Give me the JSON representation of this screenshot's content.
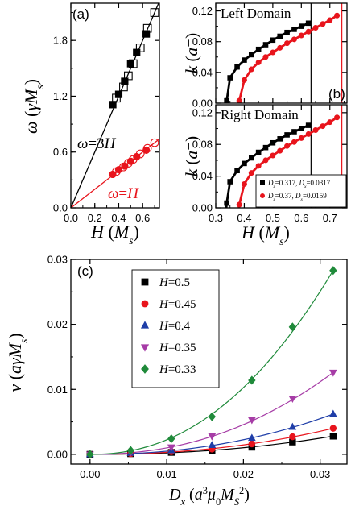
{
  "chart_data": [
    {
      "id": "a",
      "type": "scatter",
      "panel_label": "(a)",
      "xlabel": "H (M_s)",
      "ylabel": "ω (γM_s)",
      "xlim": [
        0,
        0.74
      ],
      "ylim": [
        0,
        2.2
      ],
      "xticks": [
        "0.0",
        "0.2",
        "0.4",
        "0.6"
      ],
      "yticks": [
        "0.0",
        "0.6",
        "1.2",
        "1.8"
      ],
      "annotations": [
        {
          "text": "ω=3H",
          "color": "#000000"
        },
        {
          "text": "ω=H",
          "color": "#e8141c"
        }
      ],
      "series": [
        {
          "name": "",
          "color": "#000000",
          "marker": "filled-square",
          "x": [
            0.35,
            0.4,
            0.45,
            0.5,
            0.55,
            0.63
          ],
          "y": [
            1.11,
            1.22,
            1.36,
            1.55,
            1.67,
            1.87
          ]
        },
        {
          "name": "",
          "color": "#000000",
          "marker": "open-square",
          "x": [
            0.38,
            0.44,
            0.48,
            0.52,
            0.58,
            0.64,
            0.7
          ],
          "y": [
            1.18,
            1.3,
            1.42,
            1.55,
            1.72,
            1.93,
            2.1
          ]
        },
        {
          "name": "",
          "color": "#e8141c",
          "marker": "filled-circle",
          "x": [
            0.35,
            0.4,
            0.45,
            0.5,
            0.55,
            0.63
          ],
          "y": [
            0.36,
            0.41,
            0.45,
            0.5,
            0.55,
            0.62
          ]
        },
        {
          "name": "",
          "color": "#e8141c",
          "marker": "open-circle",
          "x": [
            0.38,
            0.44,
            0.48,
            0.52,
            0.58,
            0.64,
            0.7
          ],
          "y": [
            0.39,
            0.44,
            0.48,
            0.52,
            0.58,
            0.64,
            0.7
          ]
        }
      ],
      "lines": [
        {
          "color": "#000000",
          "x": [
            0,
            0.74
          ],
          "y": [
            0,
            2.22
          ]
        },
        {
          "color": "#e8141c",
          "x": [
            0,
            0.74
          ],
          "y": [
            0,
            0.74
          ]
        }
      ]
    },
    {
      "id": "b-top",
      "type": "line",
      "panel_label": "(b)",
      "title": "Left Domain",
      "ylabel": "k (a⁻¹)",
      "xlim": [
        0.3,
        0.76
      ],
      "ylim": [
        0,
        0.13
      ],
      "yticks": [
        "0.00",
        "0.04",
        "0.08",
        "0.12"
      ],
      "vlines": [
        {
          "x": 0.634,
          "color": "#000000"
        },
        {
          "x": 0.742,
          "color": "#e8141c"
        }
      ],
      "series": [
        {
          "name": "",
          "color": "#000000",
          "x": [
            0.3385,
            0.35,
            0.375,
            0.4,
            0.425,
            0.45,
            0.475,
            0.5,
            0.525,
            0.55,
            0.575,
            0.6,
            0.625
          ],
          "y": [
            0.003,
            0.033,
            0.047,
            0.056,
            0.063,
            0.07,
            0.076,
            0.082,
            0.087,
            0.092,
            0.096,
            0.1,
            0.104
          ]
        },
        {
          "name": "",
          "color": "#e8141c",
          "x": [
            0.3825,
            0.4,
            0.425,
            0.45,
            0.475,
            0.5,
            0.525,
            0.55,
            0.575,
            0.6,
            0.625,
            0.65,
            0.675,
            0.7,
            0.725
          ],
          "y": [
            0.003,
            0.03,
            0.044,
            0.053,
            0.06,
            0.066,
            0.072,
            0.078,
            0.083,
            0.088,
            0.093,
            0.098,
            0.103,
            0.108,
            0.114
          ]
        }
      ]
    },
    {
      "id": "b-bottom",
      "type": "line",
      "title": "Right Domain",
      "xlabel": "H (M_s)",
      "ylabel": "k (a⁻¹)",
      "xlim": [
        0.3,
        0.76
      ],
      "ylim": [
        0,
        0.13
      ],
      "xticks": [
        "0.3",
        "0.4",
        "0.5",
        "0.6",
        "0.7"
      ],
      "yticks": [
        "0.00",
        "0.04",
        "0.08",
        "0.12"
      ],
      "vlines": [
        {
          "x": 0.634,
          "color": "#000000"
        },
        {
          "x": 0.742,
          "color": "#e8141c"
        }
      ],
      "legend": {
        "position": "bottom-right",
        "entries": [
          {
            "prefix": "D",
            "sub1": "z",
            "mid": "=0.317, D",
            "sub2": "x",
            "suffix": "=0.0317",
            "color": "#000000",
            "marker": "square"
          },
          {
            "prefix": "D",
            "sub1": "z",
            "mid": "=0.37, D",
            "sub2": "x",
            "suffix": "=0.0159",
            "color": "#e8141c",
            "marker": "circle"
          }
        ]
      },
      "series": [
        {
          "name": "D_z=0.317, D_x=0.0317",
          "color": "#000000",
          "x": [
            0.3385,
            0.35,
            0.375,
            0.4,
            0.425,
            0.45,
            0.475,
            0.5,
            0.525,
            0.55,
            0.575,
            0.6,
            0.625
          ],
          "y": [
            0.006,
            0.033,
            0.047,
            0.056,
            0.063,
            0.07,
            0.076,
            0.082,
            0.087,
            0.092,
            0.096,
            0.1,
            0.104
          ]
        },
        {
          "name": "D_z=0.37, D_x=0.0159",
          "color": "#e8141c",
          "x": [
            0.3825,
            0.4,
            0.425,
            0.45,
            0.475,
            0.5,
            0.525,
            0.55,
            0.575,
            0.6,
            0.625,
            0.65,
            0.675,
            0.7,
            0.725
          ],
          "y": [
            0.004,
            0.03,
            0.044,
            0.053,
            0.06,
            0.066,
            0.072,
            0.078,
            0.083,
            0.088,
            0.093,
            0.098,
            0.103,
            0.108,
            0.114
          ]
        }
      ]
    },
    {
      "id": "c",
      "type": "scatter",
      "panel_label": "(c)",
      "xlabel": "D_x (a³μ₀M_S²)",
      "ylabel": "v (aγM_s)",
      "xlim": [
        -0.0025,
        0.0335
      ],
      "ylim": [
        -0.0015,
        0.03
      ],
      "xticks": [
        "0.00",
        "0.01",
        "0.02",
        "0.03"
      ],
      "yticks": [
        "0.00",
        "0.01",
        "0.02",
        "0.03"
      ],
      "legend": {
        "position": "top-left"
      },
      "x": [
        0,
        0.0053,
        0.0106,
        0.0159,
        0.0211,
        0.0264,
        0.0317
      ],
      "series": [
        {
          "name": "H=0.5",
          "color": "#000000",
          "marker": "square",
          "values": [
            0,
            0.0001,
            0.0003,
            0.0006,
            0.0011,
            0.0019,
            0.0028
          ]
        },
        {
          "name": "H=0.45",
          "color": "#e8141c",
          "marker": "circle",
          "values": [
            0,
            0.0001,
            0.0004,
            0.0008,
            0.0016,
            0.0027,
            0.004
          ]
        },
        {
          "name": "H=0.4",
          "color": "#1f3ea8",
          "marker": "triangle-up",
          "values": [
            0,
            0.0002,
            0.0006,
            0.0014,
            0.0025,
            0.0042,
            0.0062
          ]
        },
        {
          "name": "H=0.35",
          "color": "#a63ca6",
          "marker": "triangle-down",
          "values": [
            0,
            0.0003,
            0.0011,
            0.0028,
            0.0053,
            0.0086,
            0.0126
          ]
        },
        {
          "name": "H=0.33",
          "color": "#1f8a3a",
          "marker": "diamond",
          "values": [
            0,
            0.0006,
            0.0024,
            0.0058,
            0.0114,
            0.0196,
            0.0283
          ]
        }
      ]
    }
  ]
}
